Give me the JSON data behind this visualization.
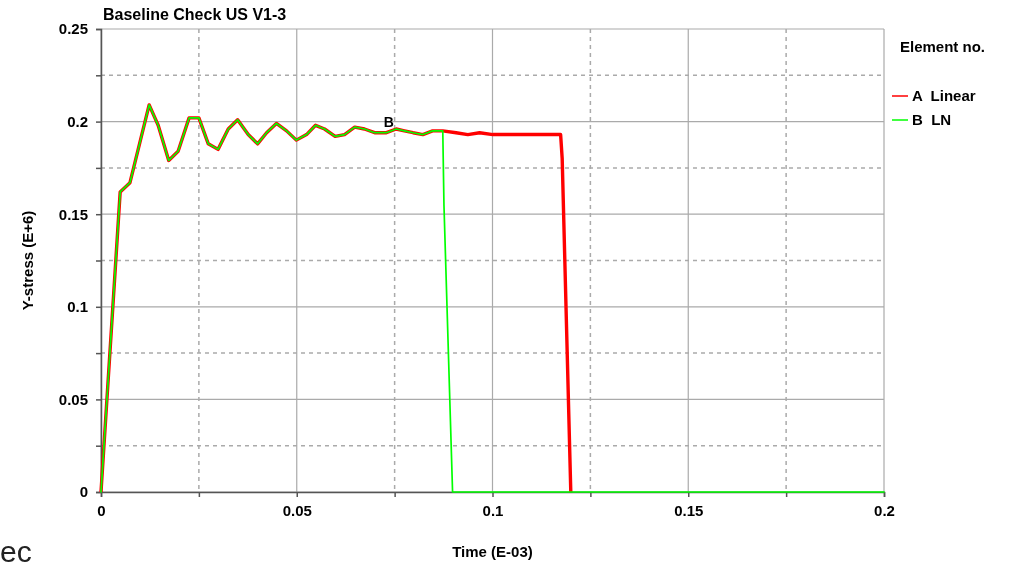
{
  "chart_data": {
    "type": "line",
    "title": "Baseline Check US V1-3",
    "xlabel": "Time (E-03)",
    "ylabel": "Y-stress (E+6)",
    "legend_title": "Element no.",
    "legend": "top right",
    "grid": true,
    "line_style": "solid",
    "marker": "none",
    "xlim": [
      0,
      0.2
    ],
    "ylim": [
      0,
      0.25
    ],
    "xticks": [
      0,
      {
        "value": 0.025,
        "label": null
      },
      0.05,
      {
        "value": 0.075,
        "label": null
      },
      0.1,
      {
        "value": 0.125,
        "label": null
      },
      0.15,
      {
        "value": 0.175,
        "label": null
      },
      0.2
    ],
    "yticks": [
      0,
      {
        "value": 0.025,
        "label": null
      },
      0.05,
      {
        "value": 0.075,
        "label": null
      },
      0.1,
      {
        "value": 0.125,
        "label": null
      },
      0.15,
      {
        "value": 0.175,
        "label": null
      },
      0.2,
      {
        "value": 0.225,
        "label": null
      },
      0.25
    ],
    "series": [
      {
        "name": "A Linear",
        "color": "#ff0000",
        "x": [
          0,
          0.0049,
          0.0074,
          0.0123,
          0.0146,
          0.0173,
          0.0197,
          0.0225,
          0.025,
          0.0274,
          0.0299,
          0.0325,
          0.0349,
          0.0376,
          0.04,
          0.0423,
          0.0448,
          0.0474,
          0.0499,
          0.0525,
          0.0548,
          0.0571,
          0.0598,
          0.0622,
          0.0648,
          0.0673,
          0.0699,
          0.0729,
          0.0754,
          0.0775,
          0.0797,
          0.0822,
          0.0847,
          0.0873,
          0.0907,
          0.0937,
          0.0967,
          0.1001,
          0.1086,
          0.1174,
          0.1178,
          0.12
        ],
        "values": [
          0,
          0.162,
          0.167,
          0.209,
          0.198,
          0.179,
          0.184,
          0.202,
          0.202,
          0.188,
          0.185,
          0.196,
          0.201,
          0.193,
          0.188,
          0.194,
          0.199,
          0.195,
          0.19,
          0.193,
          0.198,
          0.196,
          0.192,
          0.193,
          0.197,
          0.196,
          0.194,
          0.194,
          0.196,
          0.195,
          0.194,
          0.193,
          0.195,
          0.195,
          0.194,
          0.193,
          0.194,
          0.193,
          0.193,
          0.193,
          0.18,
          0
        ]
      },
      {
        "name": "B LN",
        "color": "#00ff00",
        "x": [
          0,
          0.0049,
          0.0074,
          0.0123,
          0.0146,
          0.0173,
          0.0197,
          0.0225,
          0.025,
          0.0274,
          0.0299,
          0.0325,
          0.0349,
          0.0376,
          0.04,
          0.0423,
          0.0448,
          0.0474,
          0.0499,
          0.0525,
          0.0548,
          0.0571,
          0.0598,
          0.0622,
          0.0648,
          0.0673,
          0.0699,
          0.0729,
          0.0754,
          0.0775,
          0.0797,
          0.0822,
          0.0847,
          0.0873,
          0.0876,
          0.0898,
          0.2
        ],
        "values": [
          0,
          0.162,
          0.167,
          0.209,
          0.198,
          0.179,
          0.184,
          0.202,
          0.202,
          0.188,
          0.185,
          0.196,
          0.201,
          0.193,
          0.188,
          0.194,
          0.199,
          0.195,
          0.19,
          0.193,
          0.198,
          0.196,
          0.192,
          0.193,
          0.197,
          0.196,
          0.194,
          0.194,
          0.196,
          0.195,
          0.194,
          0.193,
          0.195,
          0.195,
          0.155,
          0,
          0
        ]
      }
    ],
    "annotations": [
      {
        "text": "B",
        "x": 0.0735,
        "y": 0.197
      },
      "ec"
    ]
  }
}
